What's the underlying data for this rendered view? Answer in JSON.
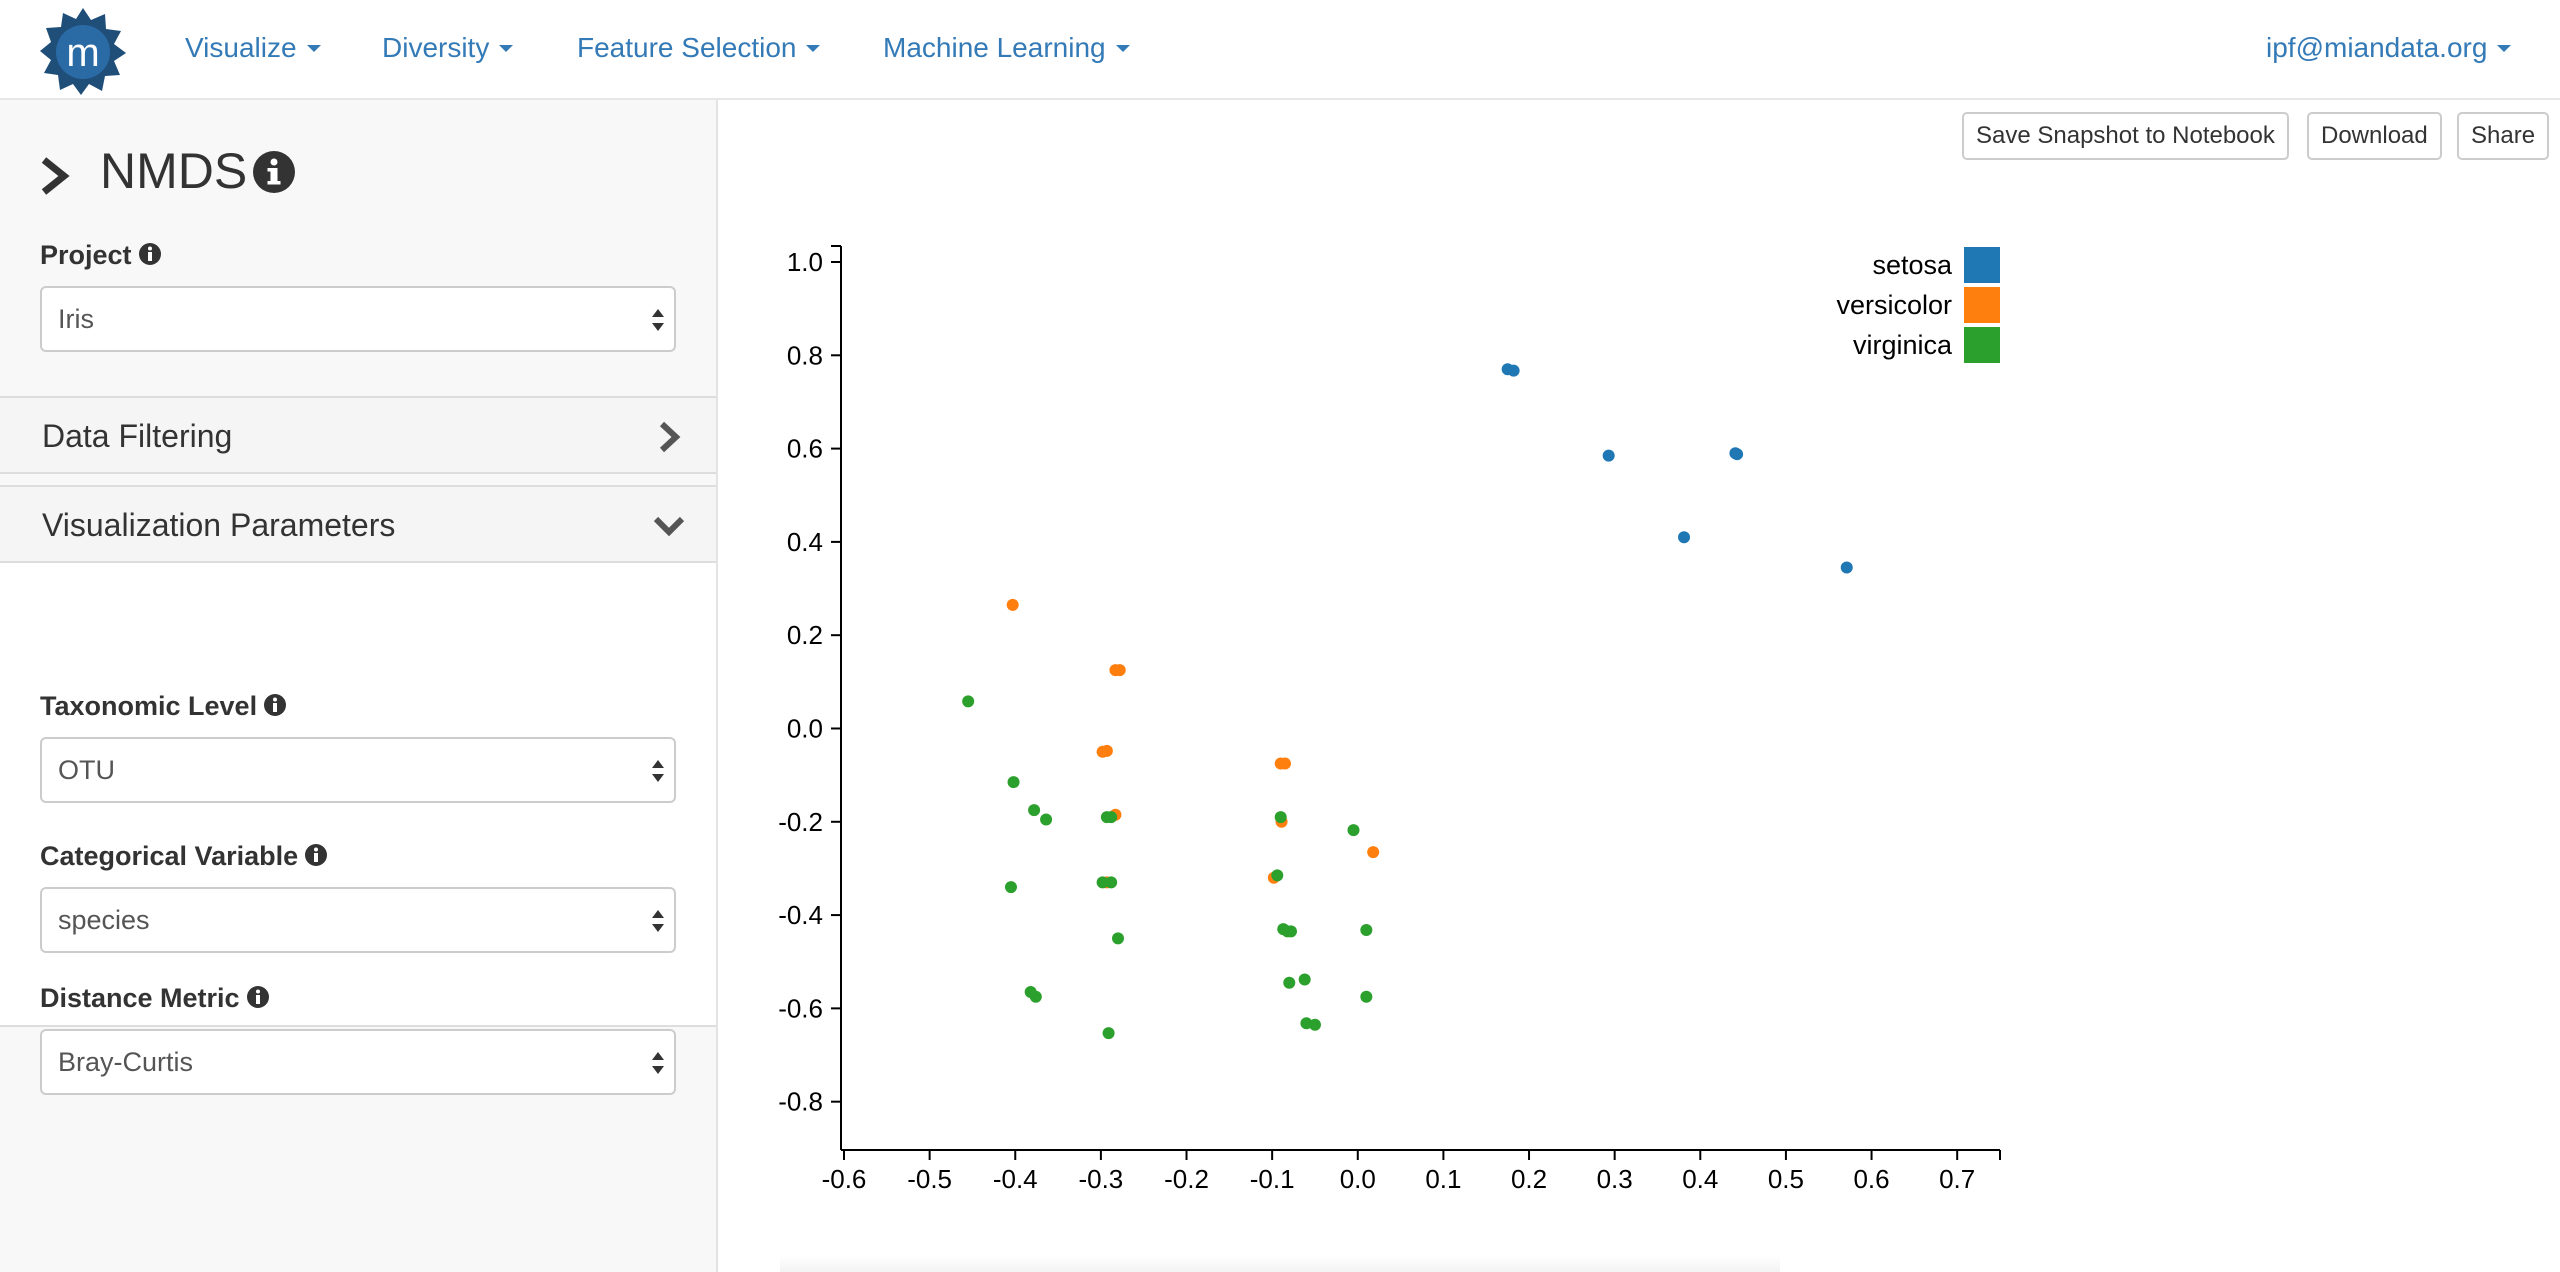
{
  "navbar": {
    "logo_letter": "m",
    "menus": [
      "Visualize",
      "Diversity",
      "Feature Selection",
      "Machine Learning"
    ],
    "user": "ipf@miandata.org"
  },
  "sidebar": {
    "title": "NMDS",
    "project": {
      "label": "Project",
      "value": "Iris"
    },
    "data_filtering": {
      "title": "Data Filtering"
    },
    "visualization_parameters": {
      "title": "Visualization Parameters",
      "taxonomic_level": {
        "label": "Taxonomic Level",
        "value": "OTU"
      },
      "categorical_variable": {
        "label": "Categorical Variable",
        "value": "species"
      },
      "distance_metric": {
        "label": "Distance Metric",
        "value": "Bray-Curtis"
      }
    }
  },
  "toolbar": {
    "save_snapshot": "Save Snapshot to Notebook",
    "download": "Download",
    "share": "Share"
  },
  "colors": {
    "link": "#337ab7",
    "setosa": "#1f77b4",
    "versicolor": "#ff7f0e",
    "virginica": "#2ca02c"
  },
  "icons": {
    "logo": "mian-logo",
    "title_toggle": "chevron-right-icon",
    "info": "info-icon",
    "data_filtering": "chevron-right-icon",
    "visualization_parameters": "chevron-down-icon"
  },
  "chart_data": {
    "type": "scatter",
    "xlim": [
      -0.6,
      0.75
    ],
    "ylim": [
      -0.85,
      1.03
    ],
    "x_ticks": [
      -0.6,
      -0.5,
      -0.4,
      -0.3,
      -0.2,
      -0.1,
      0.0,
      0.1,
      0.2,
      0.3,
      0.4,
      0.5,
      0.6,
      0.7
    ],
    "y_ticks": [
      1.0,
      0.8,
      0.6,
      0.4,
      0.2,
      0.0,
      -0.2,
      -0.4,
      -0.6,
      -0.8
    ],
    "legend_position": "top-right",
    "series": [
      {
        "name": "setosa",
        "color": "#1f77b4",
        "points": [
          [
            0.175,
            0.77
          ],
          [
            0.182,
            0.767
          ],
          [
            0.293,
            0.585
          ],
          [
            0.441,
            0.59
          ],
          [
            0.443,
            0.588
          ],
          [
            0.381,
            0.41
          ],
          [
            0.571,
            0.345
          ]
        ]
      },
      {
        "name": "versicolor",
        "color": "#ff7f0e",
        "points": [
          [
            -0.403,
            0.265
          ],
          [
            -0.283,
            0.125
          ],
          [
            -0.278,
            0.125
          ],
          [
            -0.298,
            -0.05
          ],
          [
            -0.293,
            -0.048
          ],
          [
            -0.085,
            -0.075
          ],
          [
            -0.09,
            -0.075
          ],
          [
            -0.283,
            -0.185
          ],
          [
            -0.089,
            -0.2
          ],
          [
            -0.098,
            -0.32
          ],
          [
            -0.293,
            -0.33
          ],
          [
            0.018,
            -0.265
          ]
        ]
      },
      {
        "name": "virginica",
        "color": "#2ca02c",
        "points": [
          [
            -0.455,
            0.058
          ],
          [
            -0.402,
            -0.115
          ],
          [
            -0.378,
            -0.175
          ],
          [
            -0.364,
            -0.195
          ],
          [
            -0.293,
            -0.19
          ],
          [
            -0.288,
            -0.19
          ],
          [
            -0.405,
            -0.34
          ],
          [
            -0.298,
            -0.33
          ],
          [
            -0.288,
            -0.33
          ],
          [
            -0.28,
            -0.45
          ],
          [
            -0.382,
            -0.565
          ],
          [
            -0.376,
            -0.575
          ],
          [
            -0.291,
            -0.653
          ],
          [
            -0.09,
            -0.19
          ],
          [
            -0.005,
            -0.218
          ],
          [
            -0.094,
            -0.315
          ],
          [
            -0.087,
            -0.43
          ],
          [
            -0.078,
            -0.435
          ],
          [
            -0.082,
            -0.435
          ],
          [
            0.01,
            -0.432
          ],
          [
            -0.08,
            -0.545
          ],
          [
            -0.062,
            -0.538
          ],
          [
            0.01,
            -0.575
          ],
          [
            -0.06,
            -0.632
          ],
          [
            -0.05,
            -0.635
          ]
        ]
      }
    ]
  }
}
